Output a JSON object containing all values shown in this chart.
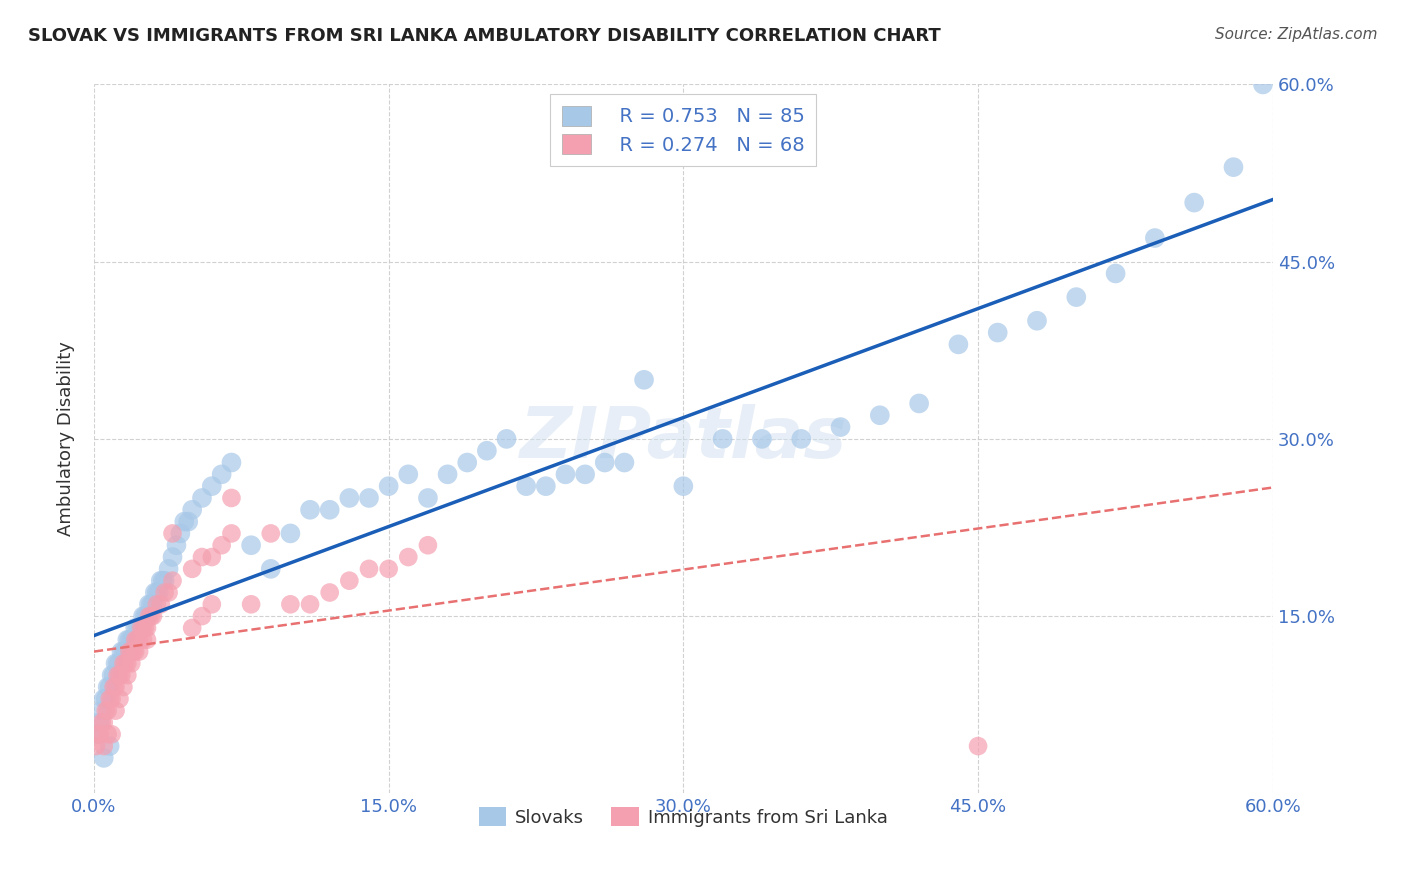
{
  "title": "SLOVAK VS IMMIGRANTS FROM SRI LANKA AMBULATORY DISABILITY CORRELATION CHART",
  "source": "Source: ZipAtlas.com",
  "ylabel": "Ambulatory Disability",
  "xlim": [
    0.0,
    0.6
  ],
  "ylim": [
    0.0,
    0.6
  ],
  "xtick_labels": [
    "0.0%",
    "15.0%",
    "30.0%",
    "45.0%",
    "60.0%"
  ],
  "xtick_vals": [
    0.0,
    0.15,
    0.3,
    0.45,
    0.6
  ],
  "ytick_vals": [
    0.15,
    0.3,
    0.45,
    0.6
  ],
  "right_ytick_labels": [
    "15.0%",
    "30.0%",
    "45.0%",
    "60.0%"
  ],
  "right_ytick_vals": [
    0.15,
    0.3,
    0.45,
    0.6
  ],
  "legend_r1": "R = 0.753",
  "legend_n1": "N = 85",
  "legend_r2": "R = 0.274",
  "legend_n2": "N = 68",
  "color_blue": "#a8c8e8",
  "color_pink": "#f4a0b0",
  "line_blue": "#1a5eb8",
  "line_pink": "#e87070",
  "watermark": "ZIPatlas",
  "background": "#ffffff",
  "slovaks_x": [
    0.002,
    0.003,
    0.004,
    0.005,
    0.006,
    0.007,
    0.008,
    0.009,
    0.01,
    0.011,
    0.012,
    0.013,
    0.014,
    0.015,
    0.016,
    0.017,
    0.018,
    0.019,
    0.02,
    0.021,
    0.022,
    0.023,
    0.024,
    0.025,
    0.026,
    0.027,
    0.028,
    0.029,
    0.03,
    0.031,
    0.032,
    0.033,
    0.034,
    0.035,
    0.036,
    0.038,
    0.04,
    0.042,
    0.044,
    0.046,
    0.048,
    0.05,
    0.055,
    0.06,
    0.065,
    0.07,
    0.08,
    0.09,
    0.1,
    0.11,
    0.12,
    0.13,
    0.14,
    0.15,
    0.16,
    0.17,
    0.18,
    0.19,
    0.2,
    0.21,
    0.22,
    0.23,
    0.24,
    0.25,
    0.26,
    0.27,
    0.28,
    0.3,
    0.32,
    0.34,
    0.36,
    0.38,
    0.4,
    0.42,
    0.44,
    0.46,
    0.48,
    0.5,
    0.52,
    0.54,
    0.56,
    0.58,
    0.595,
    0.005,
    0.008
  ],
  "slovaks_y": [
    0.05,
    0.06,
    0.07,
    0.08,
    0.08,
    0.09,
    0.09,
    0.1,
    0.1,
    0.11,
    0.11,
    0.11,
    0.12,
    0.12,
    0.12,
    0.13,
    0.13,
    0.13,
    0.13,
    0.14,
    0.14,
    0.14,
    0.14,
    0.15,
    0.15,
    0.15,
    0.16,
    0.16,
    0.16,
    0.17,
    0.17,
    0.17,
    0.18,
    0.18,
    0.18,
    0.19,
    0.2,
    0.21,
    0.22,
    0.23,
    0.23,
    0.24,
    0.25,
    0.26,
    0.27,
    0.28,
    0.21,
    0.19,
    0.22,
    0.24,
    0.24,
    0.25,
    0.25,
    0.26,
    0.27,
    0.25,
    0.27,
    0.28,
    0.29,
    0.3,
    0.26,
    0.26,
    0.27,
    0.27,
    0.28,
    0.28,
    0.35,
    0.26,
    0.3,
    0.3,
    0.3,
    0.31,
    0.32,
    0.33,
    0.38,
    0.39,
    0.4,
    0.42,
    0.44,
    0.47,
    0.5,
    0.53,
    0.6,
    0.03,
    0.04
  ],
  "srilanka_x": [
    0.001,
    0.002,
    0.003,
    0.004,
    0.005,
    0.006,
    0.007,
    0.008,
    0.009,
    0.01,
    0.011,
    0.012,
    0.013,
    0.014,
    0.015,
    0.016,
    0.017,
    0.018,
    0.019,
    0.02,
    0.021,
    0.022,
    0.023,
    0.024,
    0.025,
    0.026,
    0.027,
    0.028,
    0.029,
    0.03,
    0.032,
    0.034,
    0.036,
    0.038,
    0.04,
    0.05,
    0.055,
    0.06,
    0.065,
    0.07,
    0.08,
    0.09,
    0.1,
    0.11,
    0.12,
    0.13,
    0.14,
    0.15,
    0.16,
    0.17,
    0.005,
    0.007,
    0.009,
    0.011,
    0.013,
    0.015,
    0.017,
    0.019,
    0.021,
    0.023,
    0.025,
    0.027,
    0.04,
    0.05,
    0.055,
    0.06,
    0.07,
    0.45
  ],
  "srilanka_y": [
    0.04,
    0.05,
    0.05,
    0.06,
    0.06,
    0.07,
    0.07,
    0.08,
    0.08,
    0.09,
    0.09,
    0.1,
    0.1,
    0.1,
    0.11,
    0.11,
    0.11,
    0.12,
    0.12,
    0.12,
    0.13,
    0.13,
    0.13,
    0.14,
    0.14,
    0.14,
    0.14,
    0.15,
    0.15,
    0.15,
    0.16,
    0.16,
    0.17,
    0.17,
    0.18,
    0.19,
    0.2,
    0.2,
    0.21,
    0.22,
    0.16,
    0.22,
    0.16,
    0.16,
    0.17,
    0.18,
    0.19,
    0.19,
    0.2,
    0.21,
    0.04,
    0.05,
    0.05,
    0.07,
    0.08,
    0.09,
    0.1,
    0.11,
    0.12,
    0.12,
    0.13,
    0.13,
    0.22,
    0.14,
    0.15,
    0.16,
    0.25,
    0.04
  ]
}
